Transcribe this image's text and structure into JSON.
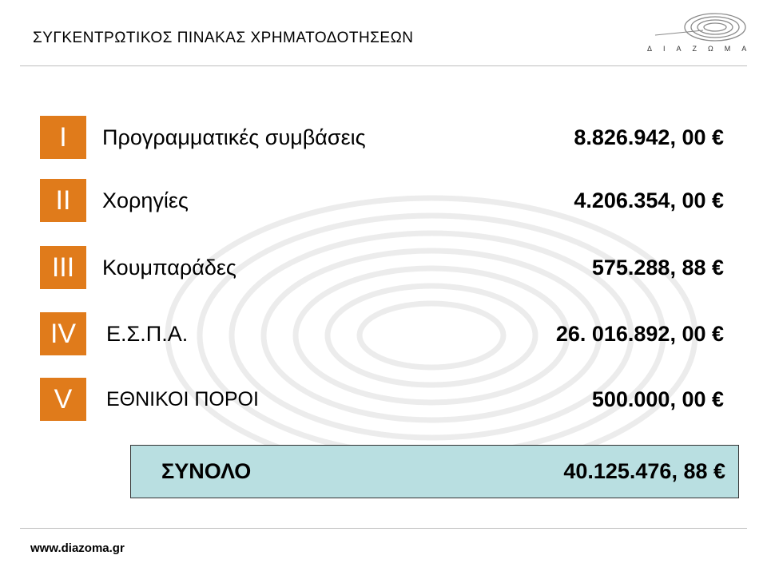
{
  "header": {
    "title": "ΣΥΓΚΕΝΤΡΩΤΙΚΟΣ ΠΙΝΑΚΑΣ ΧΡΗΜΑΤΟΔΟΤΗΣΕΩΝ",
    "logo_text": "ΔΙΑΖΩΜΑ",
    "logo_icon": "rings-logo-icon"
  },
  "rows": [
    {
      "numeral": "I",
      "label": "Προγραμματικές συμβάσεις",
      "amount": "8.826.942, 00 €"
    },
    {
      "numeral": "II",
      "label": "Χορηγίες",
      "amount": "4.206.354, 00 €"
    },
    {
      "numeral": "III",
      "label": "Κουμπαράδες",
      "amount": "575.288, 88 €"
    },
    {
      "numeral": "IV",
      "label": "Ε.Σ.Π.Α.",
      "amount": "26. 016.892, 00 €"
    },
    {
      "numeral": "V",
      "label": "ΕΘΝΙΚΟΙ ΠΟΡΟΙ",
      "amount": "500.000, 00 €"
    }
  ],
  "total": {
    "label": "ΣΥΝΟΛΟ",
    "amount": "40.125.476, 88 €"
  },
  "footer": {
    "url": "www.diazoma.gr"
  },
  "colors": {
    "numeral_bg": "#e07b1b",
    "total_bg": "#b9dfe1",
    "rule": "#bdbdbd"
  }
}
